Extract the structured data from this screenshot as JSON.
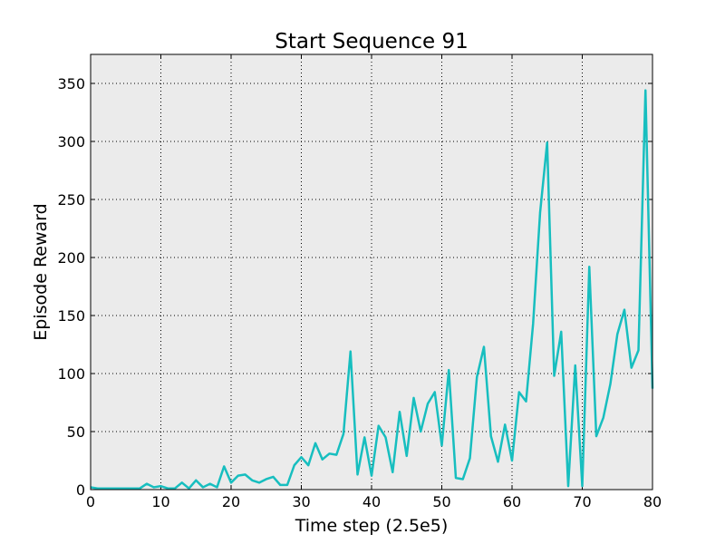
{
  "chart_data": {
    "type": "line",
    "title": "Start Sequence 91",
    "xlabel": "Time step (2.5e5)",
    "ylabel": "Episode Reward",
    "xlim": [
      0,
      80
    ],
    "ylim": [
      0,
      375
    ],
    "xticks": [
      0,
      10,
      20,
      30,
      40,
      50,
      60,
      70,
      80
    ],
    "yticks": [
      0,
      50,
      100,
      150,
      200,
      250,
      300,
      350
    ],
    "grid": true,
    "background_color": "#ebebeb",
    "line_color": "#17bebf",
    "series": [
      {
        "x": [
          0,
          1,
          2,
          3,
          4,
          5,
          6,
          7,
          8,
          9,
          10,
          11,
          12,
          13,
          14,
          15,
          16,
          17,
          18,
          19,
          20,
          21,
          22,
          23,
          24,
          25,
          26,
          27,
          28,
          29,
          30,
          31,
          32,
          33,
          34,
          35,
          36,
          37,
          38,
          39,
          40,
          41,
          42,
          43,
          44,
          45,
          46,
          47,
          48,
          49,
          50,
          51,
          52,
          53,
          54,
          55,
          56,
          57,
          58,
          59,
          60,
          61,
          62,
          63,
          64,
          65,
          66,
          67,
          68,
          69,
          70,
          71,
          72,
          73,
          74,
          75,
          76,
          77,
          78,
          79,
          80
        ],
        "values": [
          2,
          1,
          1,
          1,
          1,
          1,
          1,
          1,
          5,
          2,
          3,
          1,
          1,
          6,
          1,
          8,
          2,
          5,
          2,
          20,
          6,
          12,
          13,
          8,
          6,
          9,
          11,
          4,
          4,
          21,
          28,
          21,
          40,
          26,
          31,
          30,
          48,
          119,
          13,
          45,
          12,
          55,
          45,
          15,
          67,
          29,
          79,
          50,
          74,
          84,
          38,
          103,
          10,
          9,
          27,
          97,
          123,
          46,
          24,
          56,
          25,
          84,
          76,
          143,
          239,
          299,
          98,
          136,
          3,
          107,
          3,
          192,
          46,
          62,
          91,
          134,
          155,
          105,
          120,
          344,
          87
        ]
      }
    ]
  }
}
